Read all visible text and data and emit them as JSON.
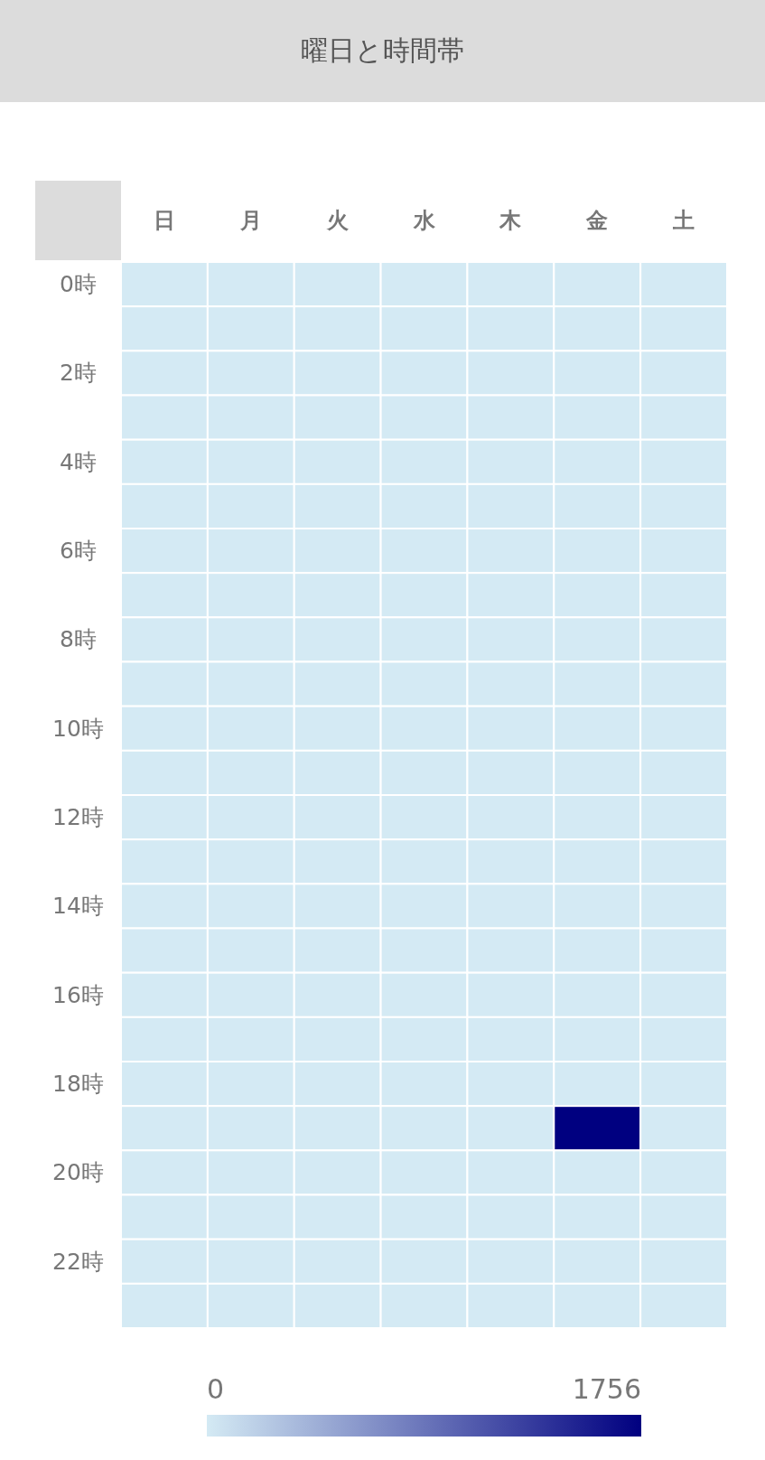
{
  "chart_data": {
    "type": "heatmap",
    "title": "曜日と時間帯",
    "categories": [
      "日",
      "月",
      "火",
      "水",
      "木",
      "金",
      "土"
    ],
    "y_categories": [
      "0時",
      null,
      "2時",
      null,
      "4時",
      null,
      "6時",
      null,
      "8時",
      null,
      "10時",
      null,
      "12時",
      null,
      "14時",
      null,
      "16時",
      null,
      "18時",
      null,
      "20時",
      null,
      "22時",
      null
    ],
    "cells": [
      [
        0,
        0,
        0,
        0,
        0,
        0,
        0
      ],
      [
        0,
        0,
        0,
        0,
        0,
        0,
        0
      ],
      [
        0,
        0,
        0,
        0,
        0,
        0,
        0
      ],
      [
        0,
        0,
        0,
        0,
        0,
        0,
        0
      ],
      [
        0,
        0,
        0,
        0,
        0,
        0,
        0
      ],
      [
        0,
        0,
        0,
        0,
        0,
        0,
        0
      ],
      [
        0,
        0,
        0,
        0,
        0,
        0,
        0
      ],
      [
        0,
        0,
        0,
        0,
        0,
        0,
        0
      ],
      [
        0,
        0,
        0,
        0,
        0,
        0,
        0
      ],
      [
        0,
        0,
        0,
        0,
        0,
        0,
        0
      ],
      [
        0,
        0,
        0,
        0,
        0,
        0,
        0
      ],
      [
        0,
        0,
        0,
        0,
        0,
        0,
        0
      ],
      [
        0,
        0,
        0,
        0,
        0,
        0,
        0
      ],
      [
        0,
        0,
        0,
        0,
        0,
        0,
        0
      ],
      [
        0,
        0,
        0,
        0,
        0,
        0,
        0
      ],
      [
        0,
        0,
        0,
        0,
        0,
        0,
        0
      ],
      [
        0,
        0,
        0,
        0,
        0,
        0,
        0
      ],
      [
        0,
        0,
        0,
        0,
        0,
        0,
        0
      ],
      [
        0,
        0,
        0,
        0,
        0,
        0,
        0
      ],
      [
        0,
        0,
        0,
        0,
        0,
        1756,
        0
      ],
      [
        0,
        0,
        0,
        0,
        0,
        0,
        0
      ],
      [
        0,
        0,
        0,
        0,
        0,
        0,
        0
      ],
      [
        0,
        0,
        0,
        0,
        0,
        0,
        0
      ],
      [
        0,
        0,
        0,
        0,
        0,
        0,
        0
      ]
    ],
    "clim": [
      0,
      1756
    ],
    "cticks": [
      0,
      1756
    ]
  }
}
